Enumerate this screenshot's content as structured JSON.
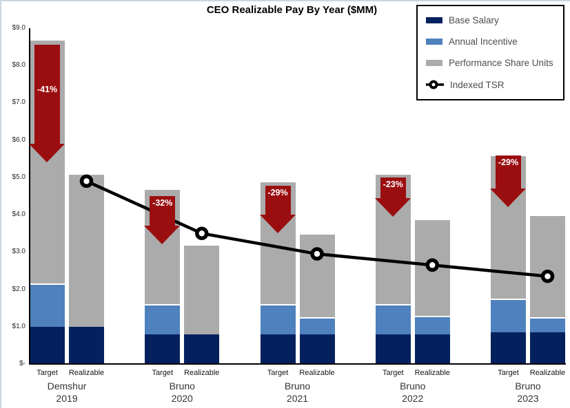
{
  "chart_data": {
    "type": "stacked-bar+line",
    "title": "CEO Realizable Pay By Year ($MM)",
    "y_axis": {
      "min": 0,
      "max": 9,
      "tick_step": 1,
      "tick_labels": [
        "$9.0",
        "$8.0",
        "$7.0",
        "$6.0",
        "$5.0",
        "$4.0",
        "$3.0",
        "$2.0",
        "$1.0",
        "$-"
      ],
      "grid": false
    },
    "bar_pair_labels": [
      "Target",
      "Realizable"
    ],
    "stack_order": [
      "base_salary",
      "annual_incentive",
      "performance_share_units"
    ],
    "legend": {
      "position": "top-right",
      "items": [
        {
          "label": "Base Salary",
          "swatch": "bar",
          "color": "#04215e"
        },
        {
          "label": "Annual Incentive",
          "swatch": "bar",
          "color": "#4e81bd"
        },
        {
          "label": "Performance Share Units",
          "swatch": "bar",
          "color": "#ababab"
        },
        {
          "label": "Indexed TSR",
          "swatch": "line-marker",
          "color": "#000000"
        }
      ]
    },
    "colors": {
      "base_salary": "#04215e",
      "annual_incentive": "#4e81bd",
      "performance_share_units": "#ababab",
      "tsr_line": "#000000",
      "tsr_marker_fill": "#ffffff",
      "arrow_fill": "#9b0e10",
      "arrow_text": "#ffffff"
    },
    "groups": [
      {
        "executive": "Demshur",
        "year": "2019",
        "target": {
          "base_salary": 1.0,
          "annual_incentive": 1.15,
          "performance_share_units": 6.55,
          "total": 8.7
        },
        "realizable": {
          "base_salary": 1.0,
          "annual_incentive": 0,
          "performance_share_units": 4.1,
          "total": 5.1
        },
        "indexed_tsr": 4.9,
        "arrow": {
          "label": "-41%",
          "from_value": 8.55,
          "to_value": 5.4
        }
      },
      {
        "executive": "Bruno",
        "year": "2020",
        "target": {
          "base_salary": 0.8,
          "annual_incentive": 0.8,
          "performance_share_units": 3.1,
          "total": 4.7
        },
        "realizable": {
          "base_salary": 0.8,
          "annual_incentive": 0,
          "performance_share_units": 2.4,
          "total": 3.2
        },
        "indexed_tsr": 3.5,
        "arrow": {
          "label": "-32%",
          "from_value": 4.5,
          "to_value": 3.2
        }
      },
      {
        "executive": "Bruno",
        "year": "2021",
        "target": {
          "base_salary": 0.8,
          "annual_incentive": 0.8,
          "performance_share_units": 3.3,
          "total": 4.9
        },
        "realizable": {
          "base_salary": 0.8,
          "annual_incentive": 0.45,
          "performance_share_units": 2.25,
          "total": 3.5
        },
        "indexed_tsr": 2.95,
        "arrow": {
          "label": "-29%",
          "from_value": 4.78,
          "to_value": 3.5
        }
      },
      {
        "executive": "Bruno",
        "year": "2022",
        "target": {
          "base_salary": 0.8,
          "annual_incentive": 0.8,
          "performance_share_units": 3.5,
          "total": 5.1
        },
        "realizable": {
          "base_salary": 0.8,
          "annual_incentive": 0.5,
          "performance_share_units": 2.6,
          "total": 3.9
        },
        "indexed_tsr": 2.65,
        "arrow": {
          "label": "-23%",
          "from_value": 5.0,
          "to_value": 3.95
        }
      },
      {
        "executive": "Bruno",
        "year": "2023",
        "target": {
          "base_salary": 0.85,
          "annual_incentive": 0.9,
          "performance_share_units": 3.85,
          "total": 5.6
        },
        "realizable": {
          "base_salary": 0.85,
          "annual_incentive": 0.4,
          "performance_share_units": 2.75,
          "total": 4.0
        },
        "indexed_tsr": 2.35,
        "arrow": {
          "label": "-29%",
          "from_value": 5.58,
          "to_value": 4.2
        }
      }
    ]
  }
}
